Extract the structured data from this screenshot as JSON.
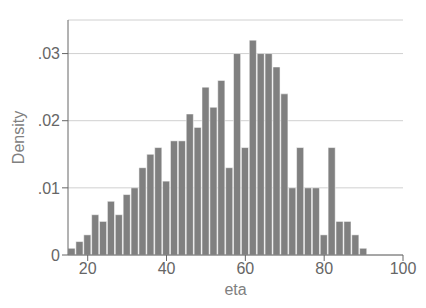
{
  "chart_data": {
    "type": "histogram",
    "xlabel": "eta",
    "ylabel": "Density",
    "bins": [
      15,
      17,
      19,
      21,
      23,
      25,
      27,
      29,
      31,
      33,
      35,
      37,
      39,
      41,
      43,
      45,
      47,
      49,
      51,
      53,
      55,
      57,
      59,
      61,
      63,
      65,
      67,
      69,
      71,
      73,
      75,
      77,
      79,
      81,
      83,
      85,
      87,
      89,
      91,
      93,
      95,
      97,
      99
    ],
    "values": [
      0.001,
      0.002,
      0.003,
      0.006,
      0.005,
      0.008,
      0.006,
      0.009,
      0.01,
      0.013,
      0.015,
      0.016,
      0.011,
      0.017,
      0.017,
      0.021,
      0.019,
      0.025,
      0.022,
      0.026,
      0.013,
      0.03,
      0.016,
      0.032,
      0.03,
      0.03,
      0.028,
      0.024,
      0.01,
      0.016,
      0.01,
      0.01,
      0.003,
      0.016,
      0.005,
      0.005,
      0.003,
      0.001,
      0.0,
      0.0,
      0.0,
      0.0
    ],
    "color": "#808080",
    "xlim": [
      15,
      100
    ],
    "ylim": [
      0,
      0.035
    ],
    "xticks": [
      20,
      40,
      60,
      80,
      100
    ],
    "yticks": [
      0,
      {
        "value": 0.01,
        "label": ".01"
      },
      {
        "value": 0.02,
        "label": ".02"
      },
      {
        "value": 0.03,
        "label": ".03"
      }
    ],
    "grid": true
  }
}
